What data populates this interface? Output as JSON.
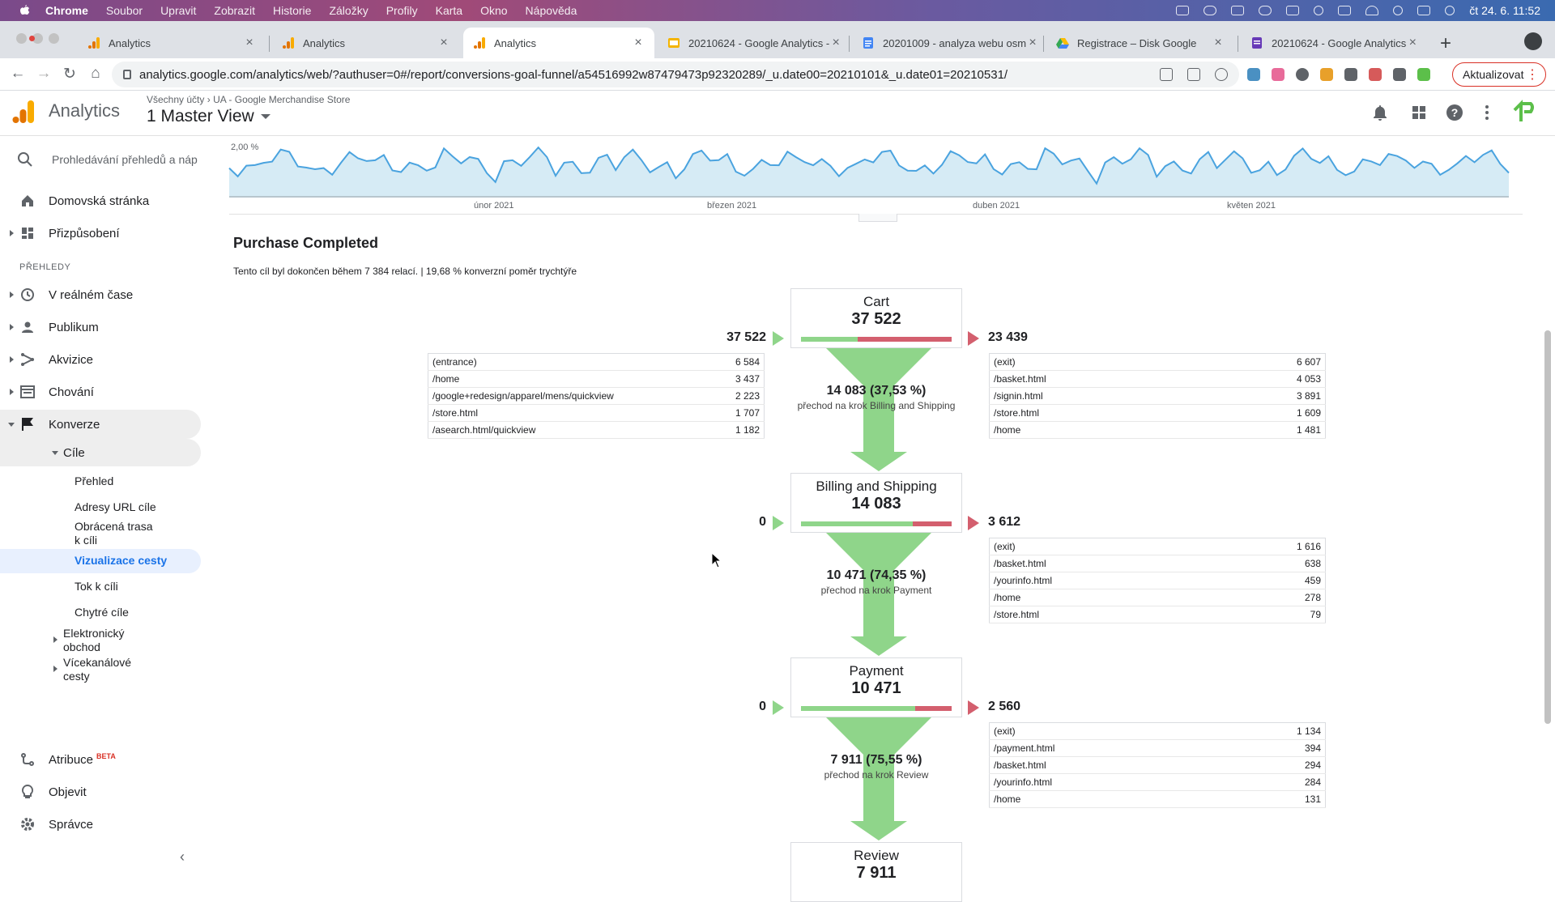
{
  "os_menubar": {
    "app": "Chrome",
    "items": [
      "Soubor",
      "Upravit",
      "Zobrazit",
      "Historie",
      "Záložky",
      "Profily",
      "Karta",
      "Okno",
      "Nápověda"
    ],
    "clock": "čt 24. 6.  11:52"
  },
  "tabs": [
    {
      "title": "Analytics"
    },
    {
      "title": "Analytics"
    },
    {
      "title": "Analytics"
    },
    {
      "title": "20210624 - Google Analytics - "
    },
    {
      "title": "20201009 - analyza webu osm"
    },
    {
      "title": "Registrace – Disk Google"
    },
    {
      "title": "20210624 - Google Analytics"
    }
  ],
  "address_bar": {
    "url": "analytics.google.com/analytics/web/?authuser=0#/report/conversions-goal-funnel/a54516992w87479473p92320289/_u.date00=20210101&_u.date01=20210531/",
    "update_label": "Aktualizovat"
  },
  "ga_header": {
    "product": "Analytics",
    "breadcrumb_root": "Všechny účty",
    "breadcrumb_property": "UA - Google Merchandise Store",
    "view": "1 Master View"
  },
  "sidebar": {
    "search_placeholder": "Prohledávání přehledů a náp",
    "home": "Domovská stránka",
    "customization": "Přizpůsobení",
    "section_reports": "PŘEHLEDY",
    "realtime": "V reálném čase",
    "audience": "Publikum",
    "acquisition": "Akvizice",
    "behavior": "Chování",
    "conversions": "Konverze",
    "goals": "Cíle",
    "goals_sub": {
      "overview": "Přehled",
      "goal_urls": "Adresy URL cíle",
      "reverse_path_line1": "Obrácená trasa",
      "reverse_path_line2": "k cíli",
      "funnel_viz": "Vizualizace cesty",
      "goal_flow": "Tok k cíli",
      "smart_goals": "Chytré cíle"
    },
    "ecommerce_line1": "Elektronický",
    "ecommerce_line2": "obchod",
    "multichannel_line1": "Vícekanálové",
    "multichannel_line2": "cesty",
    "attribution": "Atribuce",
    "attribution_badge": "BETA",
    "discover": "Objevit",
    "admin": "Správce"
  },
  "chart": {
    "y_label": "2,00 %",
    "x_labels": [
      "únor 2021",
      "březen 2021",
      "duben 2021",
      "květen 2021"
    ]
  },
  "goal": {
    "title": "Purchase Completed",
    "summary": "Tento cíl byl dokončen během 7 384 relací. | 19,68 % konverzní poměr trychtýře"
  },
  "funnel_steps": [
    {
      "name": "Cart",
      "value": "37 522",
      "entries": "37 522",
      "exits": "23 439",
      "continued_fraction": 0.3753,
      "entry_sources": [
        [
          "(entrance)",
          "6 584"
        ],
        [
          "/home",
          "3 437"
        ],
        [
          "/google+redesign/apparel/mens/quickview",
          "2 223"
        ],
        [
          "/store.html",
          "1 707"
        ],
        [
          "/asearch.html/quickview",
          "1 182"
        ]
      ],
      "exit_destinations": [
        [
          "(exit)",
          "6 607"
        ],
        [
          "/basket.html",
          "4 053"
        ],
        [
          "/signin.html",
          "3 891"
        ],
        [
          "/store.html",
          "1 609"
        ],
        [
          "/home",
          "1 481"
        ]
      ],
      "proceed_main": "14 083 (37,53 %)",
      "proceed_sub": "přechod na krok Billing and Shipping"
    },
    {
      "name": "Billing and Shipping",
      "value": "14 083",
      "entries": "0",
      "exits": "3 612",
      "continued_fraction": 0.7435,
      "exit_destinations": [
        [
          "(exit)",
          "1 616"
        ],
        [
          "/basket.html",
          "638"
        ],
        [
          "/yourinfo.html",
          "459"
        ],
        [
          "/home",
          "278"
        ],
        [
          "/store.html",
          "79"
        ]
      ],
      "proceed_main": "10 471 (74,35 %)",
      "proceed_sub": "přechod na krok Payment"
    },
    {
      "name": "Payment",
      "value": "10 471",
      "entries": "0",
      "exits": "2 560",
      "continued_fraction": 0.7555,
      "exit_destinations": [
        [
          "(exit)",
          "1 134"
        ],
        [
          "/payment.html",
          "394"
        ],
        [
          "/basket.html",
          "294"
        ],
        [
          "/yourinfo.html",
          "284"
        ],
        [
          "/home",
          "131"
        ]
      ],
      "proceed_main": "7 911 (75,55 %)",
      "proceed_sub": "přechod na krok Review"
    },
    {
      "name": "Review",
      "value": "7 911"
    }
  ],
  "colors": {
    "bar_green": "#8fd58a",
    "bar_red": "#d35f6e",
    "chart_fill": "#d6ebf5",
    "chart_line": "#4aa3df",
    "accent_blue": "#1a73e8"
  }
}
